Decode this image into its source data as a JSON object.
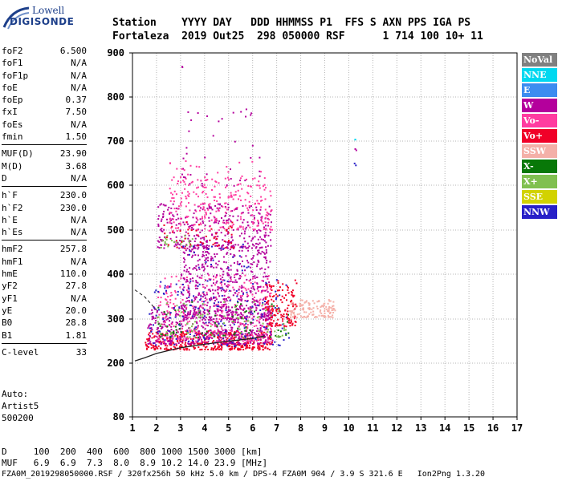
{
  "logo": {
    "line1": "Lowell",
    "line2": "DIGISONDE"
  },
  "header": {
    "line1": "Station    YYYY DAY   DDD HHMMSS P1  FFS S AXN PPS IGA PS",
    "line2": "Fortaleza  2019 Out25  298 050000 RSF      1 714 100 10+ 11"
  },
  "params": [
    {
      "label": "foF2",
      "value": "6.500"
    },
    {
      "label": "foF1",
      "value": "N/A"
    },
    {
      "label": "foF1p",
      "value": "N/A"
    },
    {
      "label": "foE",
      "value": "N/A"
    },
    {
      "label": "foEp",
      "value": "0.37"
    },
    {
      "label": "fxI",
      "value": "7.50"
    },
    {
      "label": "foEs",
      "value": "N/A"
    },
    {
      "label": "fmin",
      "value": "1.50"
    },
    {
      "sep": true
    },
    {
      "label": "MUF(D)",
      "value": "23.90"
    },
    {
      "label": "M(D)",
      "value": "3.68"
    },
    {
      "label": "D",
      "value": "N/A"
    },
    {
      "sep": true
    },
    {
      "label": "h`F",
      "value": "230.0"
    },
    {
      "label": "h`F2",
      "value": "230.0"
    },
    {
      "label": "h`E",
      "value": "N/A"
    },
    {
      "label": "h`Es",
      "value": "N/A"
    },
    {
      "sep": true
    },
    {
      "label": "hmF2",
      "value": "257.8"
    },
    {
      "label": "hmF1",
      "value": "N/A"
    },
    {
      "label": "hmE",
      "value": "110.0"
    },
    {
      "label": "yF2",
      "value": "27.8"
    },
    {
      "label": "yF1",
      "value": "N/A"
    },
    {
      "label": "yE",
      "value": "20.0"
    },
    {
      "label": "B0",
      "value": "28.8"
    },
    {
      "label": "B1",
      "value": "1.81"
    },
    {
      "sep": true
    },
    {
      "label": "C-level",
      "value": "33"
    }
  ],
  "auto": {
    "line1": "Auto:",
    "line2": "Artist5",
    "line3": "500200"
  },
  "legend": [
    {
      "label": "NoVal",
      "color": "#808080"
    },
    {
      "label": "NNE",
      "color": "#00d8f0"
    },
    {
      "label": "E",
      "color": "#3c8cf0"
    },
    {
      "label": "W",
      "color": "#b4009c"
    },
    {
      "label": "Vo-",
      "color": "#ff3ca0"
    },
    {
      "label": "Vo+",
      "color": "#f00028"
    },
    {
      "label": "SSW",
      "color": "#f4b0a8"
    },
    {
      "label": "X-",
      "color": "#087808"
    },
    {
      "label": "X+",
      "color": "#80c050"
    },
    {
      "label": "SSE",
      "color": "#d2d200"
    },
    {
      "label": "NNW",
      "color": "#2820c8"
    }
  ],
  "bottom": {
    "line1": "D     100  200  400  600  800 1000 1500 3000 [km]",
    "line2": "MUF   6.9  6.9  7.3  8.0  8.9 10.2 14.0 23.9 [MHz]",
    "footer": "FZA0M_2019298050000.RSF / 320fx256h 50 kHz 5.0 km / DPS-4 FZA0M 904 / 3.9 S 321.6 E   Ion2Png 1.3.20"
  },
  "chart_data": {
    "type": "scatter",
    "xlim": [
      1,
      17
    ],
    "ylim": [
      80,
      900
    ],
    "x_ticks": [
      "1",
      "2",
      "3",
      "4",
      "5",
      "6",
      "7",
      "8",
      "9",
      "10",
      "11",
      "12",
      "13",
      "14",
      "15",
      "16",
      "17"
    ],
    "y_ticks": [
      "80",
      "200",
      "300",
      "400",
      "500",
      "600",
      "700",
      "800",
      "900"
    ],
    "y_tick_values": [
      80,
      200,
      300,
      400,
      500,
      600,
      700,
      800,
      900
    ],
    "grid": true,
    "clusters": [
      {
        "color": "#f00028",
        "xr": [
          1.5,
          6.8
        ],
        "yr": [
          232,
          275
        ],
        "n": 420
      },
      {
        "color": "#b4009c",
        "xr": [
          1.6,
          6.8
        ],
        "yr": [
          245,
          330
        ],
        "n": 480
      },
      {
        "color": "#ff3ca0",
        "xr": [
          2.0,
          6.8
        ],
        "yr": [
          250,
          400
        ],
        "n": 360
      },
      {
        "color": "#b4009c",
        "xr": [
          3.0,
          6.7
        ],
        "yr": [
          300,
          470
        ],
        "n": 500
      },
      {
        "color": "#2820c8",
        "xr": [
          1.6,
          7.5
        ],
        "yr": [
          240,
          390
        ],
        "n": 150
      },
      {
        "color": "#087808",
        "xr": [
          2.0,
          7.5
        ],
        "yr": [
          260,
          340
        ],
        "n": 70
      },
      {
        "color": "#80c050",
        "xr": [
          2.0,
          7.5
        ],
        "yr": [
          260,
          340
        ],
        "n": 90
      },
      {
        "color": "#f00028",
        "xr": [
          6.5,
          7.8
        ],
        "yr": [
          285,
          390
        ],
        "n": 140
      },
      {
        "color": "#f4b0a8",
        "xr": [
          7.5,
          9.4
        ],
        "yr": [
          305,
          345
        ],
        "n": 130
      },
      {
        "color": "#b4009c",
        "xr": [
          2.0,
          6.8
        ],
        "yr": [
          460,
          560
        ],
        "n": 320
      },
      {
        "color": "#ff3ca0",
        "xr": [
          2.5,
          6.8
        ],
        "yr": [
          500,
          620
        ],
        "n": 220
      },
      {
        "color": "#80c050",
        "xr": [
          2.0,
          3.5
        ],
        "yr": [
          462,
          490
        ],
        "n": 25
      },
      {
        "color": "#f00028",
        "xr": [
          2.2,
          5.2
        ],
        "yr": [
          460,
          520
        ],
        "n": 50
      },
      {
        "color": "#b4009c",
        "xr": [
          3.0,
          6.5
        ],
        "yr": [
          600,
          780
        ],
        "n": 40
      },
      {
        "color": "#ff3ca0",
        "xr": [
          2.5,
          6.5
        ],
        "yr": [
          560,
          660
        ],
        "n": 60
      },
      {
        "color": "#2820c8",
        "xr": [
          3.0,
          6.0
        ],
        "yr": [
          340,
          470
        ],
        "n": 40
      },
      {
        "color": "#00d8f0",
        "xr": [
          10.2,
          10.3
        ],
        "yr": [
          705,
          712
        ],
        "n": 2
      },
      {
        "color": "#b4009c",
        "xr": [
          10.2,
          10.3
        ],
        "yr": [
          676,
          684
        ],
        "n": 2
      },
      {
        "color": "#2820c8",
        "xr": [
          10.2,
          10.3
        ],
        "yr": [
          646,
          654
        ],
        "n": 2
      },
      {
        "color": "#b4009c",
        "xr": [
          3.0,
          3.1
        ],
        "yr": [
          866,
          872
        ],
        "n": 2
      }
    ],
    "profile_curve": {
      "x": [
        1.1,
        1.5,
        2.0,
        3.0,
        4.0,
        5.0,
        6.0,
        6.5
      ],
      "y": [
        205,
        212,
        222,
        235,
        243,
        250,
        256,
        262
      ]
    },
    "profile_dashed": {
      "x": [
        1.1,
        1.5,
        2.0
      ],
      "y": [
        365,
        350,
        320
      ]
    }
  }
}
